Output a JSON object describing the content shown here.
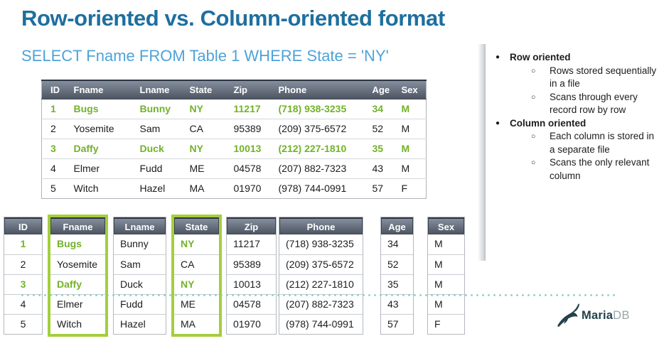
{
  "title": "Row-oriented vs. Column-oriented format",
  "query": "SELECT Fname FROM Table 1 WHERE State = 'NY'",
  "headers": [
    "ID",
    "Fname",
    "Lname",
    "State",
    "Zip",
    "Phone",
    "Age",
    "Sex"
  ],
  "rows": [
    {
      "cells": [
        "1",
        "Bugs",
        "Bunny",
        "NY",
        "11217",
        "(718) 938-3235",
        "34",
        "M"
      ],
      "match": true
    },
    {
      "cells": [
        "2",
        "Yosemite",
        "Sam",
        "CA",
        "95389",
        "(209) 375-6572",
        "52",
        "M"
      ],
      "match": false
    },
    {
      "cells": [
        "3",
        "Daffy",
        "Duck",
        "NY",
        "10013",
        "(212) 227-1810",
        "35",
        "M"
      ],
      "match": true
    },
    {
      "cells": [
        "4",
        "Elmer",
        "Fudd",
        "ME",
        "04578",
        "(207) 882-7323",
        "43",
        "M"
      ],
      "match": false
    },
    {
      "cells": [
        "5",
        "Witch",
        "Hazel",
        "MA",
        "01970",
        "(978) 744-0991",
        "57",
        "F"
      ],
      "match": false
    }
  ],
  "column_table": {
    "bordered_columns": [
      "Fname",
      "State"
    ],
    "green_value_columns": [
      "ID",
      "Fname",
      "State"
    ]
  },
  "notes": [
    {
      "label": "Row oriented",
      "items": [
        "Rows stored sequentially in a file",
        "Scans through every record row by row"
      ]
    },
    {
      "label": "Column oriented",
      "items": [
        "Each column is stored in a separate file",
        "Scans the only relevant column"
      ]
    }
  ],
  "bullet_glyphs": {
    "level1": "●",
    "level2": "○"
  },
  "logo": {
    "maria": "Maria",
    "db": "DB",
    "icon": "mariadb-seal-icon"
  },
  "colors": {
    "title": "#1d6f9f",
    "query": "#4da3d9",
    "green_text": "#72b22a",
    "green_border": "#a3cf3b",
    "header_gradient_top": "#858e9c",
    "header_gradient_bottom": "#4e5664",
    "dotted_line": "#7ecdc1",
    "logo_dark": "#24424d",
    "logo_gray": "#9aa5aa"
  }
}
